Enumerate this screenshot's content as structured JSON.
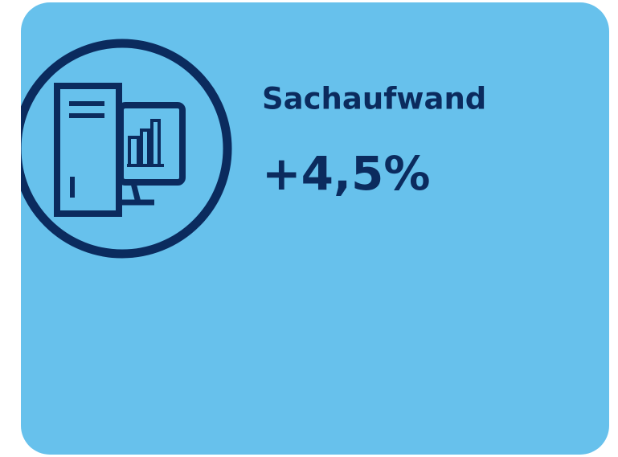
{
  "card": {
    "title": "Sachaufwand",
    "value": "+4,5%"
  }
}
